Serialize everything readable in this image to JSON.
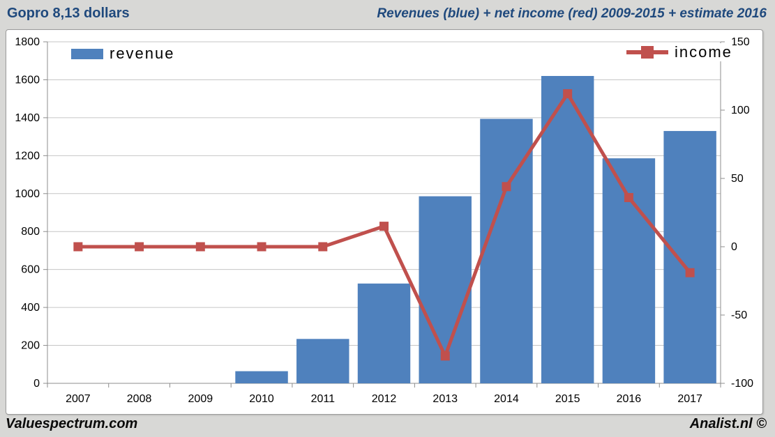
{
  "header": {
    "left_title": "Gopro 8,13 dollars",
    "right_title": "Revenues (blue) + net income (red) 2009-2015 + estimate 2016"
  },
  "footer": {
    "left_brand": "Valuespectrum.com",
    "right_brand": "Analist.nl ©"
  },
  "colors": {
    "bar": "#4f81bd",
    "line": "#c0504d",
    "title": "#1f497d",
    "background": "#d8d8d6",
    "plot_background": "#ffffff",
    "gridline": "#c6c6c6",
    "axis": "#8c8c8c",
    "text": "#000000"
  },
  "chart_data": {
    "type": "bar+line",
    "title_left": "Gopro 8,13 dollars",
    "title_right": "Revenues (blue) + net income (red) 2009-2015 + estimate 2016",
    "categories": [
      "2007",
      "2008",
      "2009",
      "2010",
      "2011",
      "2012",
      "2013",
      "2014",
      "2015",
      "2016",
      "2017"
    ],
    "series": [
      {
        "name": "revenue",
        "type": "bar",
        "axis": "left",
        "color": "#4f81bd",
        "values": [
          null,
          null,
          null,
          64,
          234,
          526,
          986,
          1394,
          1620,
          1186,
          1330
        ]
      },
      {
        "name": "income",
        "type": "line",
        "axis": "right",
        "color": "#c0504d",
        "values": [
          0,
          0,
          0,
          0,
          0,
          15,
          -80,
          44,
          112,
          36,
          -19
        ]
      }
    ],
    "left_axis": {
      "min": 0,
      "max": 1800,
      "step": 200,
      "tick_labels": [
        "1800",
        "1600",
        "1400",
        "1200",
        "1000",
        "800",
        "600",
        "400",
        "200",
        "0"
      ]
    },
    "right_axis": {
      "min": -100,
      "max": 150,
      "step": 50,
      "tick_labels": [
        "150",
        "100",
        "50",
        "0",
        "-50",
        "-100"
      ]
    },
    "grid": true,
    "legend_position": "inside-top"
  }
}
